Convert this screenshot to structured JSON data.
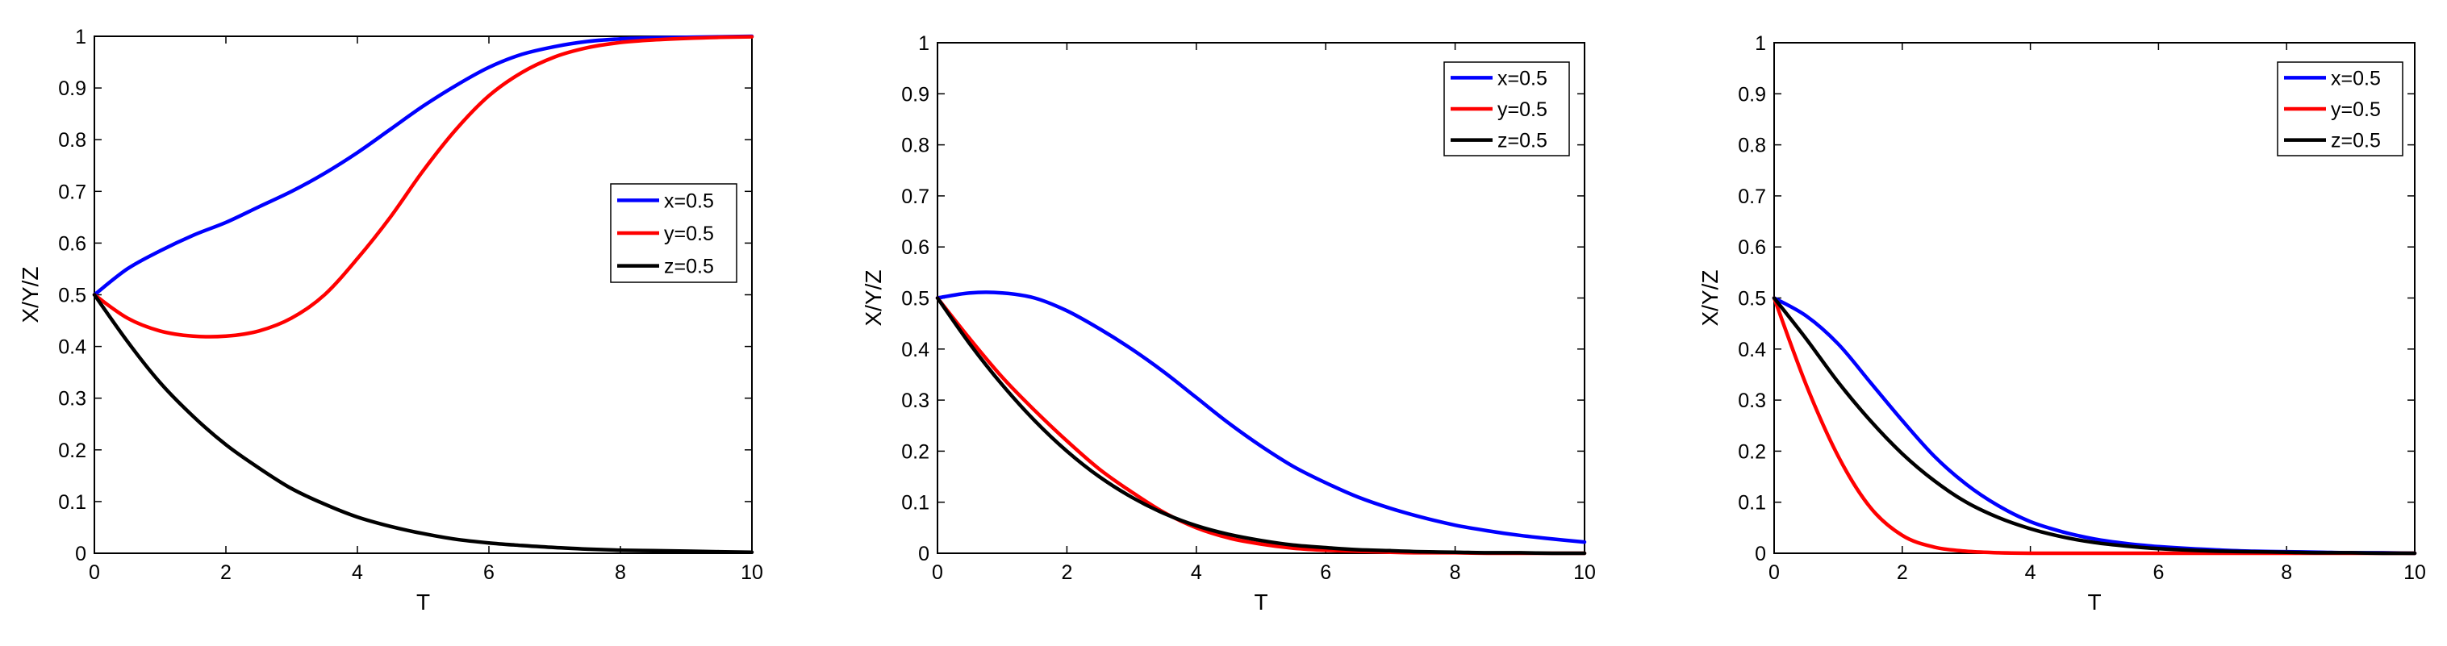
{
  "chart_data": [
    {
      "type": "line",
      "xlabel": "T",
      "ylabel": "X/Y/Z",
      "xlim": [
        0,
        10
      ],
      "ylim": [
        0,
        1
      ],
      "xticks": [
        0,
        2,
        4,
        6,
        8,
        10
      ],
      "yticks": [
        0,
        0.1,
        0.2,
        0.3,
        0.4,
        0.5,
        0.6,
        0.7,
        0.8,
        0.9,
        1
      ],
      "ytick_labels": [
        "0",
        "0.1",
        "0.2",
        "0.3",
        "0.4",
        "0.5",
        "0.6",
        "0.7",
        "0.8",
        "0.9",
        "1"
      ],
      "legend_position": "center-right",
      "x": [
        0,
        0.5,
        1,
        1.5,
        2,
        2.5,
        3,
        3.5,
        4,
        4.5,
        5,
        5.5,
        6,
        6.5,
        7,
        7.5,
        8,
        8.5,
        9,
        9.5,
        10
      ],
      "series": [
        {
          "name": "x=0.5",
          "color": "#0000ff",
          "values": [
            0.5,
            0.55,
            0.585,
            0.615,
            0.64,
            0.67,
            0.7,
            0.735,
            0.775,
            0.82,
            0.865,
            0.905,
            0.94,
            0.965,
            0.98,
            0.99,
            0.995,
            0.997,
            0.998,
            0.999,
            1.0
          ]
        },
        {
          "name": "y=0.5",
          "color": "#ff0000",
          "values": [
            0.5,
            0.455,
            0.43,
            0.42,
            0.42,
            0.43,
            0.455,
            0.5,
            0.57,
            0.65,
            0.74,
            0.82,
            0.885,
            0.93,
            0.96,
            0.978,
            0.988,
            0.993,
            0.996,
            0.998,
            0.999
          ]
        },
        {
          "name": "z=0.5",
          "color": "#000000",
          "values": [
            0.5,
            0.41,
            0.33,
            0.265,
            0.21,
            0.165,
            0.125,
            0.095,
            0.07,
            0.052,
            0.038,
            0.027,
            0.02,
            0.015,
            0.011,
            0.008,
            0.006,
            0.005,
            0.004,
            0.003,
            0.002
          ]
        }
      ]
    },
    {
      "type": "line",
      "xlabel": "T",
      "ylabel": "X/Y/Z",
      "xlim": [
        0,
        10
      ],
      "ylim": [
        0,
        1
      ],
      "xticks": [
        0,
        2,
        4,
        6,
        8,
        10
      ],
      "yticks": [
        0,
        0.1,
        0.2,
        0.3,
        0.4,
        0.5,
        0.6,
        0.7,
        0.8,
        0.9,
        1
      ],
      "ytick_labels": [
        "0",
        "0.1",
        "0.2",
        "0.3",
        "0.4",
        "0.5",
        "0.6",
        "0.7",
        "0.8",
        "0.9",
        "1"
      ],
      "legend_position": "top-right",
      "x": [
        0,
        0.5,
        1,
        1.5,
        2,
        2.5,
        3,
        3.5,
        4,
        4.5,
        5,
        5.5,
        6,
        6.5,
        7,
        7.5,
        8,
        8.5,
        9,
        9.5,
        10
      ],
      "series": [
        {
          "name": "x=0.5",
          "color": "#0000ff",
          "values": [
            0.5,
            0.51,
            0.51,
            0.5,
            0.475,
            0.44,
            0.4,
            0.355,
            0.305,
            0.255,
            0.21,
            0.17,
            0.138,
            0.11,
            0.088,
            0.07,
            0.055,
            0.044,
            0.035,
            0.028,
            0.022
          ]
        },
        {
          "name": "y=0.5",
          "color": "#ff0000",
          "values": [
            0.5,
            0.42,
            0.345,
            0.28,
            0.22,
            0.165,
            0.12,
            0.08,
            0.05,
            0.03,
            0.018,
            0.01,
            0.006,
            0.004,
            0.002,
            0.001,
            0.001,
            0.0,
            0.0,
            0.0,
            0.0
          ]
        },
        {
          "name": "z=0.5",
          "color": "#000000",
          "values": [
            0.5,
            0.41,
            0.33,
            0.26,
            0.2,
            0.15,
            0.11,
            0.078,
            0.054,
            0.037,
            0.025,
            0.016,
            0.011,
            0.007,
            0.005,
            0.003,
            0.002,
            0.001,
            0.001,
            0.0,
            0.0
          ]
        }
      ]
    },
    {
      "type": "line",
      "xlabel": "T",
      "ylabel": "X/Y/Z",
      "xlim": [
        0,
        10
      ],
      "ylim": [
        0,
        1
      ],
      "xticks": [
        0,
        2,
        4,
        6,
        8,
        10
      ],
      "yticks": [
        0,
        0.1,
        0.2,
        0.3,
        0.4,
        0.5,
        0.6,
        0.7,
        0.8,
        0.9,
        1
      ],
      "ytick_labels": [
        "0",
        "0.1",
        "0.2",
        "0.3",
        "0.4",
        "0.5",
        "0.6",
        "0.7",
        "0.8",
        "0.9",
        "1"
      ],
      "legend_position": "top-right",
      "x": [
        0,
        0.5,
        1,
        1.5,
        2,
        2.5,
        3,
        3.5,
        4,
        4.5,
        5,
        5.5,
        6,
        6.5,
        7,
        7.5,
        8,
        8.5,
        9,
        9.5,
        10
      ],
      "series": [
        {
          "name": "x=0.5",
          "color": "#0000ff",
          "values": [
            0.5,
            0.465,
            0.41,
            0.335,
            0.26,
            0.19,
            0.135,
            0.093,
            0.062,
            0.042,
            0.028,
            0.019,
            0.013,
            0.009,
            0.006,
            0.004,
            0.003,
            0.002,
            0.001,
            0.001,
            0.0
          ]
        },
        {
          "name": "y=0.5",
          "color": "#ff0000",
          "values": [
            0.5,
            0.33,
            0.19,
            0.09,
            0.035,
            0.012,
            0.004,
            0.001,
            0.0,
            0.0,
            0.0,
            0.0,
            0.0,
            0.0,
            0.0,
            0.0,
            0.0,
            0.0,
            0.0,
            0.0,
            0.0
          ]
        },
        {
          "name": "z=0.5",
          "color": "#000000",
          "values": [
            0.5,
            0.42,
            0.335,
            0.26,
            0.195,
            0.142,
            0.1,
            0.07,
            0.048,
            0.032,
            0.021,
            0.014,
            0.009,
            0.006,
            0.004,
            0.003,
            0.002,
            0.001,
            0.001,
            0.0,
            0.0
          ]
        }
      ]
    }
  ]
}
